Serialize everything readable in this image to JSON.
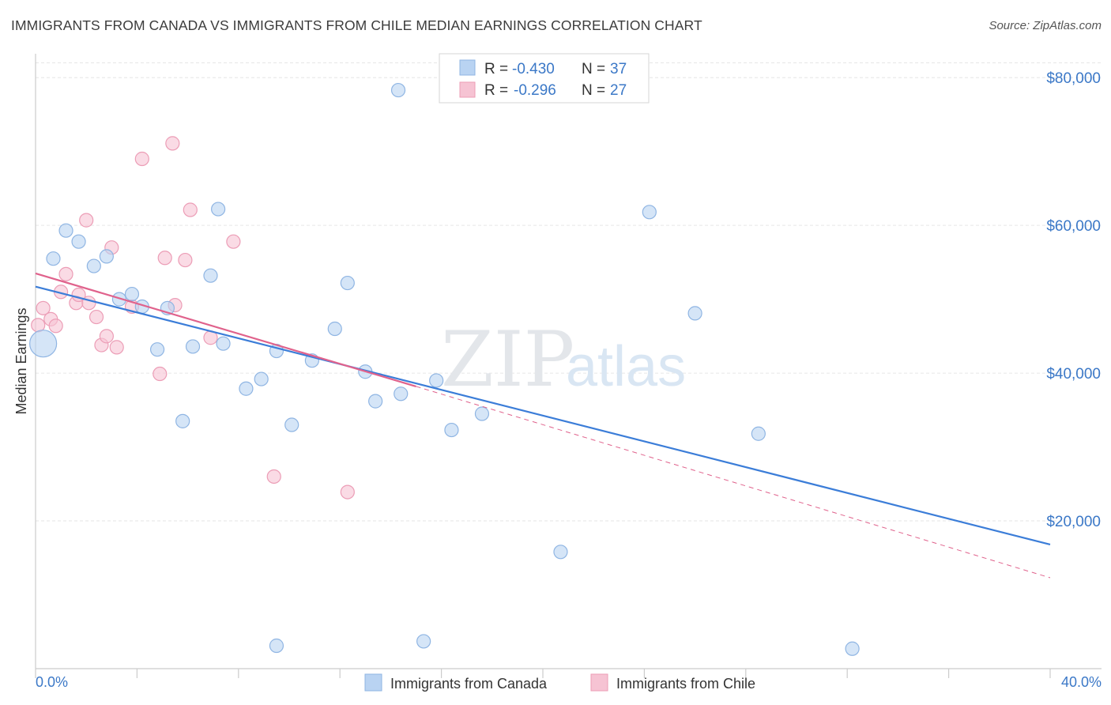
{
  "title": "IMMIGRANTS FROM CANADA VS IMMIGRANTS FROM CHILE MEDIAN EARNINGS CORRELATION CHART",
  "source": "Source: ZipAtlas.com",
  "watermark": {
    "zip": "ZIP",
    "atlas": "atlas"
  },
  "colors": {
    "canada_fill": "#b9d3f2",
    "canada_stroke": "#8fb5e3",
    "canada_line": "#3b7dd8",
    "chile_fill": "#f6c3d3",
    "chile_stroke": "#ec9db6",
    "chile_line": "#e0628c",
    "axis_text": "#3b78c7",
    "grid": "#e6e6e6"
  },
  "legend": {
    "rows": [
      {
        "r_label": "R =",
        "r_value": "-0.430",
        "n_label": "N =",
        "n_value": "37"
      },
      {
        "r_label": "R =",
        "r_value": "-0.296",
        "n_label": "N =",
        "n_value": "27"
      }
    ]
  },
  "bottom_legend": [
    "Immigrants from Canada",
    "Immigrants from Chile"
  ],
  "chart_data": {
    "type": "scatter",
    "title": "IMMIGRANTS FROM CANADA VS IMMIGRANTS FROM CHILE MEDIAN EARNINGS CORRELATION CHART",
    "xlabel": "",
    "ylabel": "Median Earnings",
    "xlim": [
      0,
      40
    ],
    "ylim": [
      0,
      82000
    ],
    "x_tick_labels": [
      "0.0%",
      "40.0%"
    ],
    "y_ticks": [
      {
        "value": 20000,
        "label": "$20,000"
      },
      {
        "value": 40000,
        "label": "$40,000"
      },
      {
        "value": 60000,
        "label": "$60,000"
      },
      {
        "value": 80000,
        "label": "$80,000"
      }
    ],
    "grid": true,
    "legend_position": "top-center",
    "series": [
      {
        "name": "Immigrants from Canada",
        "points": [
          {
            "x": 0.3,
            "y": 44000,
            "size": "large"
          },
          {
            "x": 0.7,
            "y": 55500
          },
          {
            "x": 1.2,
            "y": 59300
          },
          {
            "x": 1.7,
            "y": 57800
          },
          {
            "x": 2.3,
            "y": 54500
          },
          {
            "x": 2.8,
            "y": 55800
          },
          {
            "x": 3.3,
            "y": 50000
          },
          {
            "x": 3.8,
            "y": 50700
          },
          {
            "x": 4.2,
            "y": 49000
          },
          {
            "x": 4.8,
            "y": 43200
          },
          {
            "x": 5.2,
            "y": 48800
          },
          {
            "x": 5.8,
            "y": 33500
          },
          {
            "x": 6.2,
            "y": 43600
          },
          {
            "x": 6.9,
            "y": 53200
          },
          {
            "x": 7.2,
            "y": 62200
          },
          {
            "x": 7.4,
            "y": 44000
          },
          {
            "x": 8.3,
            "y": 37900
          },
          {
            "x": 8.9,
            "y": 39200
          },
          {
            "x": 9.5,
            "y": 43000
          },
          {
            "x": 10.1,
            "y": 33000
          },
          {
            "x": 10.9,
            "y": 41700
          },
          {
            "x": 11.8,
            "y": 46000
          },
          {
            "x": 12.3,
            "y": 52200
          },
          {
            "x": 13.0,
            "y": 40200
          },
          {
            "x": 13.4,
            "y": 36200
          },
          {
            "x": 14.4,
            "y": 37200
          },
          {
            "x": 14.3,
            "y": 78300
          },
          {
            "x": 15.8,
            "y": 39000
          },
          {
            "x": 16.4,
            "y": 32300
          },
          {
            "x": 17.6,
            "y": 34500
          },
          {
            "x": 20.7,
            "y": 15800
          },
          {
            "x": 24.2,
            "y": 61800
          },
          {
            "x": 26.0,
            "y": 48100
          },
          {
            "x": 28.5,
            "y": 31800
          },
          {
            "x": 9.5,
            "y": 3100
          },
          {
            "x": 15.3,
            "y": 3700
          },
          {
            "x": 32.2,
            "y": 2700
          }
        ],
        "trend": {
          "x0": 0,
          "y0": 51700,
          "x1": 40,
          "y1": 16800
        }
      },
      {
        "name": "Immigrants from Chile",
        "points": [
          {
            "x": 0.1,
            "y": 46500
          },
          {
            "x": 0.3,
            "y": 48800
          },
          {
            "x": 0.6,
            "y": 47300
          },
          {
            "x": 0.8,
            "y": 46400
          },
          {
            "x": 1.0,
            "y": 51000
          },
          {
            "x": 1.2,
            "y": 53400
          },
          {
            "x": 1.6,
            "y": 49500
          },
          {
            "x": 1.7,
            "y": 50600
          },
          {
            "x": 2.0,
            "y": 60700
          },
          {
            "x": 2.1,
            "y": 49500
          },
          {
            "x": 2.4,
            "y": 47600
          },
          {
            "x": 2.6,
            "y": 43800
          },
          {
            "x": 2.8,
            "y": 45000
          },
          {
            "x": 3.0,
            "y": 57000
          },
          {
            "x": 3.2,
            "y": 43500
          },
          {
            "x": 3.8,
            "y": 49000
          },
          {
            "x": 4.2,
            "y": 69000
          },
          {
            "x": 4.9,
            "y": 39900
          },
          {
            "x": 5.1,
            "y": 55600
          },
          {
            "x": 5.4,
            "y": 71100
          },
          {
            "x": 5.9,
            "y": 55300
          },
          {
            "x": 6.1,
            "y": 62100
          },
          {
            "x": 6.9,
            "y": 44800
          },
          {
            "x": 7.8,
            "y": 57800
          },
          {
            "x": 9.4,
            "y": 26000
          },
          {
            "x": 12.3,
            "y": 23900
          },
          {
            "x": 5.5,
            "y": 49200
          }
        ],
        "trend": {
          "x0": 0,
          "y0": 53500,
          "x1": 15,
          "y1": 38200
        },
        "trend_extension": {
          "x0": 15,
          "y0": 38200,
          "x1": 40,
          "y1": 12300
        }
      }
    ]
  }
}
